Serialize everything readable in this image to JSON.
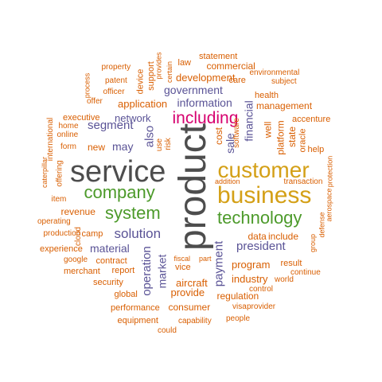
{
  "palette": {
    "orange": "#d95f02",
    "purple": "#5a5396",
    "gray": "#4d4d4d",
    "gold": "#d4a017",
    "green": "#4c9a2a",
    "magenta": "#d6006f"
  },
  "words": [
    {
      "text": "product",
      "color": "gray",
      "vertical": true
    },
    {
      "text": "service",
      "color": "gray",
      "vertical": false
    },
    {
      "text": "customer",
      "color": "gold",
      "vertical": false
    },
    {
      "text": "business",
      "color": "gold",
      "vertical": false
    },
    {
      "text": "company",
      "color": "green",
      "vertical": false
    },
    {
      "text": "system",
      "color": "green",
      "vertical": false
    },
    {
      "text": "technology",
      "color": "green",
      "vertical": false
    },
    {
      "text": "including",
      "color": "magenta",
      "vertical": false
    },
    {
      "text": "solution",
      "color": "purple",
      "vertical": false
    },
    {
      "text": "information",
      "color": "purple",
      "vertical": false
    },
    {
      "text": "government",
      "color": "purple",
      "vertical": false
    },
    {
      "text": "president",
      "color": "purple",
      "vertical": false
    },
    {
      "text": "payment",
      "color": "purple",
      "vertical": true
    },
    {
      "text": "operation",
      "color": "purple",
      "vertical": true
    },
    {
      "text": "market",
      "color": "purple",
      "vertical": true
    },
    {
      "text": "segment",
      "color": "purple",
      "vertical": false
    },
    {
      "text": "also",
      "color": "purple",
      "vertical": true
    },
    {
      "text": "may",
      "color": "purple",
      "vertical": false
    },
    {
      "text": "network",
      "color": "purple",
      "vertical": false
    },
    {
      "text": "material",
      "color": "purple",
      "vertical": false
    },
    {
      "text": "financial",
      "color": "purple",
      "vertical": true
    },
    {
      "text": "sale",
      "color": "purple",
      "vertical": true
    },
    {
      "text": "development",
      "color": "orange",
      "vertical": false
    },
    {
      "text": "application",
      "color": "orange",
      "vertical": false
    },
    {
      "text": "management",
      "color": "orange",
      "vertical": false
    },
    {
      "text": "program",
      "color": "orange",
      "vertical": false
    },
    {
      "text": "data",
      "color": "orange",
      "vertical": false
    },
    {
      "text": "include",
      "color": "orange",
      "vertical": false
    },
    {
      "text": "industry",
      "color": "orange",
      "vertical": false
    },
    {
      "text": "regulation",
      "color": "orange",
      "vertical": false
    },
    {
      "text": "provide",
      "color": "orange",
      "vertical": false
    },
    {
      "text": "consumer",
      "color": "orange",
      "vertical": false
    },
    {
      "text": "aircraft",
      "color": "orange",
      "vertical": false
    },
    {
      "text": "revenue",
      "color": "orange",
      "vertical": false
    },
    {
      "text": "new",
      "color": "orange",
      "vertical": false
    },
    {
      "text": "health",
      "color": "orange",
      "vertical": false
    },
    {
      "text": "cost",
      "color": "orange",
      "vertical": true
    },
    {
      "text": "software",
      "color": "orange",
      "vertical": true
    },
    {
      "text": "well",
      "color": "orange",
      "vertical": true
    },
    {
      "text": "platform",
      "color": "orange",
      "vertical": true
    },
    {
      "text": "state",
      "color": "orange",
      "vertical": true
    },
    {
      "text": "oracle",
      "color": "orange",
      "vertical": true
    },
    {
      "text": "commercial",
      "color": "orange",
      "vertical": false
    },
    {
      "text": "statement",
      "color": "orange",
      "vertical": false
    },
    {
      "text": "care",
      "color": "orange",
      "vertical": false
    },
    {
      "text": "environmental",
      "color": "orange",
      "vertical": false
    },
    {
      "text": "subject",
      "color": "orange",
      "vertical": false
    },
    {
      "text": "law",
      "color": "orange",
      "vertical": false
    },
    {
      "text": "certain",
      "color": "orange",
      "vertical": true
    },
    {
      "text": "provides",
      "color": "orange",
      "vertical": true
    },
    {
      "text": "support",
      "color": "orange",
      "vertical": true
    },
    {
      "text": "device",
      "color": "orange",
      "vertical": true
    },
    {
      "text": "property",
      "color": "orange",
      "vertical": false
    },
    {
      "text": "patent",
      "color": "orange",
      "vertical": false
    },
    {
      "text": "officer",
      "color": "orange",
      "vertical": false
    },
    {
      "text": "offer",
      "color": "orange",
      "vertical": false
    },
    {
      "text": "process",
      "color": "orange",
      "vertical": true
    },
    {
      "text": "accenture",
      "color": "orange",
      "vertical": false
    },
    {
      "text": "help",
      "color": "orange",
      "vertical": false
    },
    {
      "text": "protection",
      "color": "orange",
      "vertical": true
    },
    {
      "text": "aerospace",
      "color": "orange",
      "vertical": true
    },
    {
      "text": "defense",
      "color": "orange",
      "vertical": true
    },
    {
      "text": "transaction",
      "color": "orange",
      "vertical": false
    },
    {
      "text": "addition",
      "color": "orange",
      "vertical": false
    },
    {
      "text": "group",
      "color": "orange",
      "vertical": true
    },
    {
      "text": "result",
      "color": "orange",
      "vertical": false
    },
    {
      "text": "continue",
      "color": "orange",
      "vertical": false
    },
    {
      "text": "world",
      "color": "orange",
      "vertical": false
    },
    {
      "text": "control",
      "color": "orange",
      "vertical": false
    },
    {
      "text": "provider",
      "color": "orange",
      "vertical": false
    },
    {
      "text": "visa",
      "color": "orange",
      "vertical": false
    },
    {
      "text": "people",
      "color": "orange",
      "vertical": false
    },
    {
      "text": "capability",
      "color": "orange",
      "vertical": false
    },
    {
      "text": "could",
      "color": "orange",
      "vertical": false
    },
    {
      "text": "equipment",
      "color": "orange",
      "vertical": false
    },
    {
      "text": "performance",
      "color": "orange",
      "vertical": false
    },
    {
      "text": "global",
      "color": "orange",
      "vertical": false
    },
    {
      "text": "security",
      "color": "orange",
      "vertical": false
    },
    {
      "text": "merchant",
      "color": "orange",
      "vertical": false
    },
    {
      "text": "google",
      "color": "orange",
      "vertical": false
    },
    {
      "text": "experience",
      "color": "orange",
      "vertical": false
    },
    {
      "text": "contract",
      "color": "orange",
      "vertical": false
    },
    {
      "text": "report",
      "color": "orange",
      "vertical": false
    },
    {
      "text": "vice",
      "color": "orange",
      "vertical": false
    },
    {
      "text": "fiscal",
      "color": "orange",
      "vertical": false
    },
    {
      "text": "part",
      "color": "orange",
      "vertical": false
    },
    {
      "text": "production",
      "color": "orange",
      "vertical": false
    },
    {
      "text": "camp",
      "color": "orange",
      "vertical": false
    },
    {
      "text": "operating",
      "color": "orange",
      "vertical": false
    },
    {
      "text": "cloud",
      "color": "orange",
      "vertical": true
    },
    {
      "text": "item",
      "color": "orange",
      "vertical": false
    },
    {
      "text": "offering",
      "color": "orange",
      "vertical": true
    },
    {
      "text": "caterpillar",
      "color": "orange",
      "vertical": true
    },
    {
      "text": "international",
      "color": "orange",
      "vertical": true
    },
    {
      "text": "executive",
      "color": "orange",
      "vertical": false
    },
    {
      "text": "home",
      "color": "orange",
      "vertical": false
    },
    {
      "text": "online",
      "color": "orange",
      "vertical": false
    },
    {
      "text": "form",
      "color": "orange",
      "vertical": false
    },
    {
      "text": "use",
      "color": "orange",
      "vertical": true
    },
    {
      "text": "risk",
      "color": "orange",
      "vertical": true
    }
  ]
}
